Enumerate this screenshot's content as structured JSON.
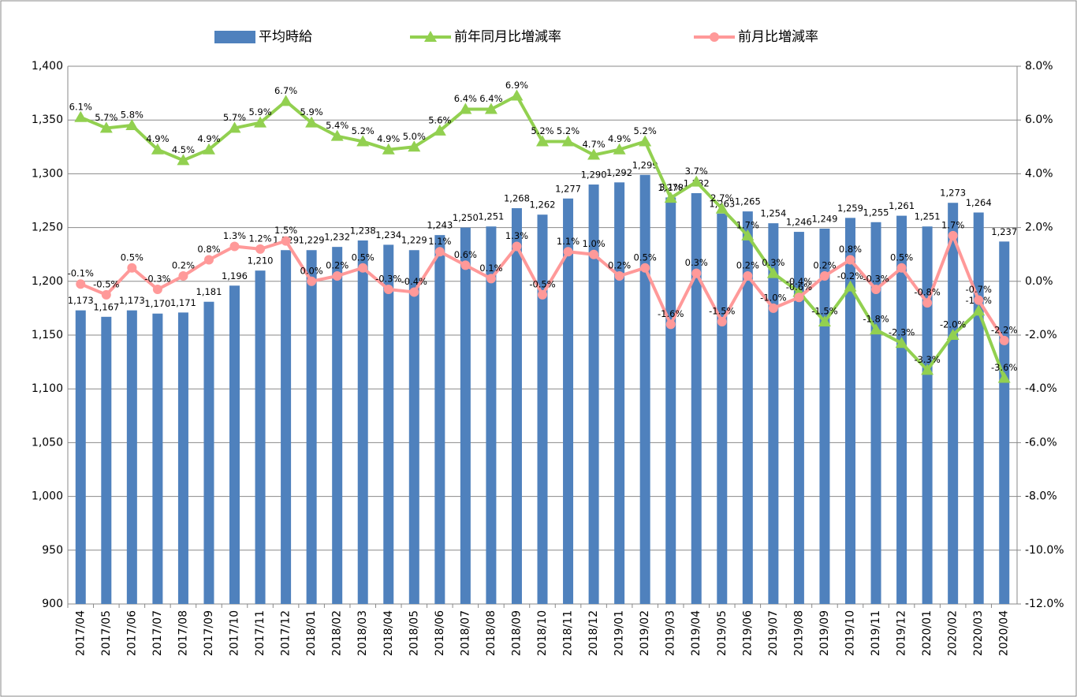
{
  "chart_data": {
    "type": "bar",
    "categories": [
      "2017/04",
      "2017/05",
      "2017/06",
      "2017/07",
      "2017/08",
      "2017/09",
      "2017/10",
      "2017/11",
      "2017/12",
      "2018/01",
      "2018/02",
      "2018/03",
      "2018/04",
      "2018/05",
      "2018/06",
      "2018/07",
      "2018/08",
      "2018/09",
      "2018/10",
      "2018/11",
      "2018/12",
      "2019/01",
      "2019/02",
      "2019/03",
      "2019/04",
      "2019/05",
      "2019/06",
      "2019/07",
      "2019/08",
      "2019/09",
      "2019/10",
      "2019/11",
      "2019/12",
      "2020/01",
      "2020/02",
      "2020/03",
      "2020/04"
    ],
    "series": [
      {
        "name": "平均時給",
        "type": "bar",
        "color": "#4f81bd",
        "values": [
          1173,
          1167,
          1173,
          1170,
          1171,
          1181,
          1196,
          1210,
          1229,
          1229,
          1232,
          1238,
          1234,
          1229,
          1243,
          1250,
          1251,
          1268,
          1262,
          1277,
          1290,
          1292,
          1299,
          1278,
          1282,
          1263,
          1265,
          1254,
          1246,
          1249,
          1259,
          1255,
          1261,
          1251,
          1273,
          1264,
          1237
        ],
        "value_labels": [
          "1,173",
          "1,167",
          "1,173",
          "1,170",
          "1,171",
          "1,181",
          "1,196",
          "1,210",
          "1,229",
          "1,229",
          "1,232",
          "1,238",
          "1,234",
          "1,229",
          "1,243",
          "1,250",
          "1,251",
          "1,268",
          "1,262",
          "1,277",
          "1,290",
          "1,292",
          "1,299",
          "1,278",
          "1,282",
          "1,263",
          "1,265",
          "1,254",
          "1,246",
          "1,249",
          "1,259",
          "1,255",
          "1,261",
          "1,251",
          "1,273",
          "1,264",
          "1,237"
        ]
      },
      {
        "name": "前年同月比増減率",
        "type": "line",
        "marker": "triangle",
        "axis": "y2",
        "color": "#92d050",
        "values": [
          6.1,
          5.7,
          5.8,
          4.9,
          4.5,
          4.9,
          5.7,
          5.9,
          6.7,
          5.9,
          5.4,
          5.2,
          4.9,
          5.0,
          5.6,
          6.4,
          6.4,
          6.9,
          5.2,
          5.2,
          4.7,
          4.9,
          5.2,
          3.1,
          3.7,
          2.7,
          1.7,
          0.3,
          -0.4,
          -1.5,
          -0.2,
          -1.8,
          -2.3,
          -3.3,
          -2.0,
          -1.1,
          -3.6
        ],
        "value_labels": [
          "6.1%",
          "5.7%",
          "5.8%",
          "4.9%",
          "4.5%",
          "4.9%",
          "5.7%",
          "5.9%",
          "6.7%",
          "5.9%",
          "5.4%",
          "5.2%",
          "4.9%",
          "5.0%",
          "5.6%",
          "6.4%",
          "6.4%",
          "6.9%",
          "5.2%",
          "5.2%",
          "4.7%",
          "4.9%",
          "5.2%",
          "3.1%",
          "3.7%",
          "2.7%",
          "1.7%",
          "0.3%",
          "-0.4%",
          "-1.5%",
          "-0.2%",
          "-1.8%",
          "-2.3%",
          "-3.3%",
          "-2.0%",
          "-1.1%",
          "-3.6%"
        ]
      },
      {
        "name": "前月比増減率",
        "type": "line",
        "marker": "circle",
        "axis": "y2",
        "color": "#ff9999",
        "values": [
          -0.1,
          -0.5,
          0.5,
          -0.3,
          0.2,
          0.8,
          1.3,
          1.2,
          1.5,
          0.0,
          0.2,
          0.5,
          -0.3,
          -0.4,
          1.1,
          0.6,
          0.1,
          1.3,
          -0.5,
          1.1,
          1.0,
          0.2,
          0.5,
          -1.6,
          0.3,
          -1.5,
          0.2,
          -1.0,
          -0.6,
          0.2,
          0.8,
          -0.3,
          0.5,
          -0.8,
          1.7,
          -0.7,
          -2.2
        ],
        "value_labels": [
          "-0.1%",
          "-0.5%",
          "0.5%",
          "-0.3%",
          "0.2%",
          "0.8%",
          "1.3%",
          "1.2%",
          "1.5%",
          "0.0%",
          "0.2%",
          "0.5%",
          "-0.3%",
          "-0.4%",
          "1.1%",
          "0.6%",
          "0.1%",
          "1.3%",
          "-0.5%",
          "1.1%",
          "1.0%",
          "0.2%",
          "0.5%",
          "-1.6%",
          "0.3%",
          "-1.5%",
          "0.2%",
          "-1.0%",
          "-0.6%",
          "0.2%",
          "0.8%",
          "-0.3%",
          "0.5%",
          "-0.8%",
          "1.7%",
          "-0.7%",
          "-2.2%"
        ]
      }
    ],
    "ylim": [
      900,
      1400
    ],
    "yticks": [
      {
        "value": 900,
        "label": "900"
      },
      {
        "value": 950,
        "label": "950"
      },
      {
        "value": 1000,
        "label": "1,000"
      },
      {
        "value": 1050,
        "label": "1,050"
      },
      {
        "value": 1100,
        "label": "1,100"
      },
      {
        "value": 1150,
        "label": "1,150"
      },
      {
        "value": 1200,
        "label": "1,200"
      },
      {
        "value": 1250,
        "label": "1,250"
      },
      {
        "value": 1300,
        "label": "1,300"
      },
      {
        "value": 1350,
        "label": "1,350"
      },
      {
        "value": 1400,
        "label": "1,400"
      }
    ],
    "y2lim": [
      -12,
      8
    ],
    "y2ticks": [
      {
        "value": -12,
        "label": "-12.0%"
      },
      {
        "value": -10,
        "label": "-10.0%"
      },
      {
        "value": -8,
        "label": "-8.0%"
      },
      {
        "value": -6,
        "label": "-6.0%"
      },
      {
        "value": -4,
        "label": "-4.0%"
      },
      {
        "value": -2,
        "label": "-2.0%"
      },
      {
        "value": 0,
        "label": "0.0%"
      },
      {
        "value": 2,
        "label": "2.0%"
      },
      {
        "value": 4,
        "label": "4.0%"
      },
      {
        "value": 6,
        "label": "6.0%"
      },
      {
        "value": 8,
        "label": "8.0%"
      }
    ],
    "grid": true,
    "legend": "top"
  }
}
